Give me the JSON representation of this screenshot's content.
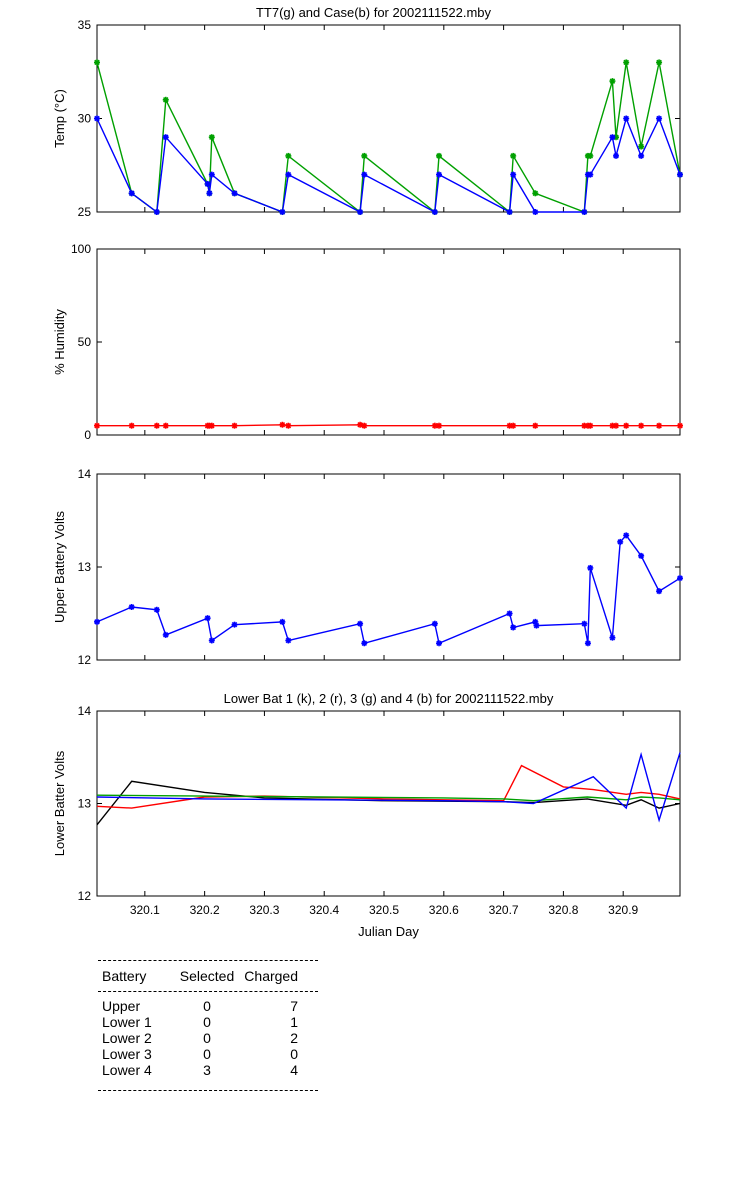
{
  "chart_data": [
    {
      "type": "line",
      "title": "TT7(g) and Case(b) for 2002111522.mby",
      "ylabel": "Temp  (°C)",
      "xlabel": "",
      "xlim": [
        320.02,
        320.995
      ],
      "ylim": [
        25,
        35
      ],
      "yticks": [
        25,
        30,
        35
      ],
      "series": [
        {
          "color": "#00a000",
          "x": [
            320.02,
            320.078,
            320.12,
            320.135,
            320.205,
            320.208,
            320.212,
            320.25,
            320.33,
            320.34,
            320.46,
            320.467,
            320.585,
            320.592,
            320.71,
            320.716,
            320.753,
            320.835,
            320.841,
            320.845,
            320.882,
            320.888,
            320.905,
            320.93,
            320.96,
            320.995
          ],
          "y": [
            33,
            26,
            25,
            31,
            26.5,
            26,
            29,
            26,
            25,
            28,
            25,
            28,
            25,
            28,
            25,
            28,
            26,
            25,
            28,
            28,
            32,
            29,
            33,
            28.5,
            33,
            27
          ]
        },
        {
          "color": "#0000ff",
          "x": [
            320.02,
            320.078,
            320.12,
            320.135,
            320.205,
            320.208,
            320.212,
            320.25,
            320.33,
            320.34,
            320.46,
            320.467,
            320.585,
            320.592,
            320.71,
            320.716,
            320.753,
            320.835,
            320.841,
            320.845,
            320.882,
            320.888,
            320.905,
            320.93,
            320.96,
            320.995
          ],
          "y": [
            30,
            26,
            25,
            29,
            26.5,
            26,
            27,
            26,
            25,
            27,
            25,
            27,
            25,
            27,
            25,
            27,
            25,
            25,
            27,
            27,
            29,
            28,
            30,
            28,
            30,
            27
          ]
        }
      ]
    },
    {
      "type": "line",
      "title": "",
      "ylabel": "% Humidity",
      "xlabel": "",
      "xlim": [
        320.02,
        320.995
      ],
      "ylim": [
        0,
        100
      ],
      "yticks": [
        0,
        50,
        100
      ],
      "series": [
        {
          "color": "#ff0000",
          "x": [
            320.02,
            320.078,
            320.12,
            320.135,
            320.205,
            320.208,
            320.212,
            320.25,
            320.33,
            320.34,
            320.46,
            320.467,
            320.585,
            320.592,
            320.71,
            320.716,
            320.753,
            320.835,
            320.841,
            320.845,
            320.882,
            320.888,
            320.905,
            320.93,
            320.96,
            320.995
          ],
          "y": [
            5,
            5,
            5,
            5,
            5,
            5,
            5,
            5,
            5.5,
            5,
            5.5,
            5,
            5,
            5,
            5,
            5,
            5,
            5,
            5,
            5,
            5,
            5,
            5,
            5,
            5,
            5
          ]
        }
      ]
    },
    {
      "type": "line",
      "title": "",
      "ylabel": "Upper Battery Volts",
      "xlabel": "",
      "xlim": [
        320.02,
        320.995
      ],
      "ylim": [
        12,
        14
      ],
      "yticks": [
        12,
        13,
        14
      ],
      "series": [
        {
          "color": "#0000ff",
          "x": [
            320.02,
            320.078,
            320.12,
            320.135,
            320.205,
            320.212,
            320.25,
            320.33,
            320.34,
            320.46,
            320.467,
            320.585,
            320.592,
            320.71,
            320.716,
            320.753,
            320.755,
            320.835,
            320.841,
            320.845,
            320.882,
            320.895,
            320.905,
            320.93,
            320.96,
            320.995
          ],
          "y": [
            12.41,
            12.57,
            12.54,
            12.27,
            12.45,
            12.21,
            12.38,
            12.41,
            12.21,
            12.39,
            12.18,
            12.39,
            12.18,
            12.5,
            12.35,
            12.41,
            12.37,
            12.39,
            12.18,
            12.99,
            12.24,
            13.27,
            13.34,
            13.12,
            12.74,
            12.88
          ]
        }
      ]
    },
    {
      "type": "line",
      "title": "Lower Bat 1 (k), 2 (r), 3 (g) and 4 (b) for 2002111522.mby",
      "ylabel": "Lower Batter Volts",
      "xlabel": "Julian Day",
      "xlim": [
        320.02,
        320.995
      ],
      "ylim": [
        12,
        14
      ],
      "yticks": [
        12,
        13,
        14
      ],
      "xticks": [
        320.1,
        320.2,
        320.3,
        320.4,
        320.5,
        320.6,
        320.7,
        320.8,
        320.9
      ],
      "xticklabels": [
        "320.1",
        "320.2",
        "320.3",
        "320.4",
        "320.5",
        "320.6",
        "320.7",
        "320.8",
        "320.9"
      ],
      "series": [
        {
          "color": "#000000",
          "x": [
            320.02,
            320.078,
            320.2,
            320.3,
            320.5,
            320.7,
            320.75,
            320.84,
            320.905,
            320.93,
            320.96,
            320.995
          ],
          "y": [
            12.77,
            13.24,
            13.12,
            13.06,
            13.03,
            13.02,
            13.01,
            13.05,
            12.98,
            13.04,
            12.95,
            13.0
          ]
        },
        {
          "color": "#ff0000",
          "x": [
            320.02,
            320.078,
            320.2,
            320.3,
            320.5,
            320.7,
            320.73,
            320.8,
            320.85,
            320.905,
            320.93,
            320.96,
            320.995
          ],
          "y": [
            12.97,
            12.95,
            13.07,
            13.08,
            13.05,
            13.03,
            13.41,
            13.18,
            13.15,
            13.1,
            13.12,
            13.1,
            13.05
          ]
        },
        {
          "color": "#00a000",
          "x": [
            320.02,
            320.2,
            320.4,
            320.6,
            320.7,
            320.75,
            320.84,
            320.905,
            320.93,
            320.96,
            320.995
          ],
          "y": [
            13.09,
            13.08,
            13.07,
            13.06,
            13.05,
            13.03,
            13.07,
            13.04,
            13.07,
            13.06,
            13.04
          ]
        },
        {
          "color": "#0000ff",
          "x": [
            320.02,
            320.2,
            320.4,
            320.6,
            320.7,
            320.75,
            320.85,
            320.905,
            320.93,
            320.96,
            320.995
          ],
          "y": [
            13.07,
            13.05,
            13.04,
            13.03,
            13.02,
            13.0,
            13.29,
            12.95,
            13.53,
            12.82,
            13.55
          ]
        }
      ]
    }
  ],
  "table": {
    "headers": [
      "Battery",
      "Selected",
      "Charged"
    ],
    "rows": [
      [
        "Upper",
        "0",
        "7"
      ],
      [
        "Lower 1",
        "0",
        "1"
      ],
      [
        "Lower 2",
        "0",
        "2"
      ],
      [
        "Lower 3",
        "0",
        "0"
      ],
      [
        "Lower 4",
        "3",
        "4"
      ]
    ]
  }
}
